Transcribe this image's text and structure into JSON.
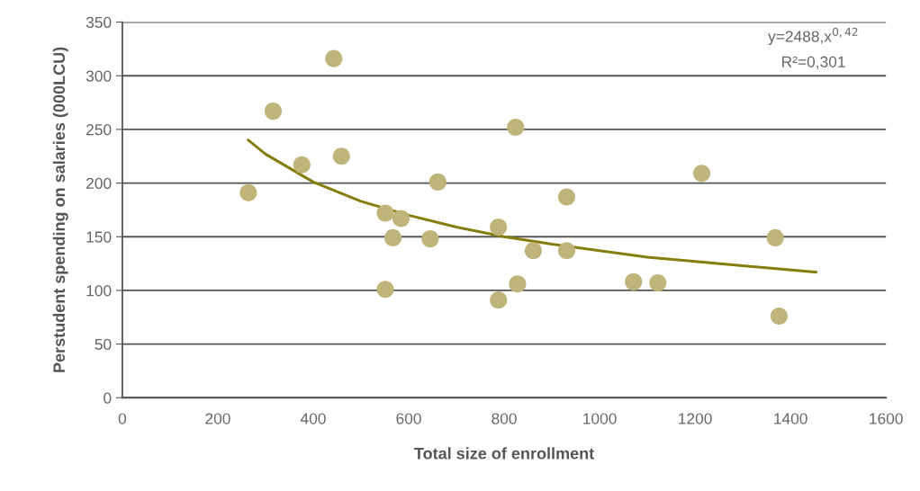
{
  "chart_data": {
    "type": "scatter",
    "xlabel": "Total size of enrollment",
    "ylabel": "Perstudent spending on salaries (000LCU)",
    "annotations": [
      "y=2488,x$^{0,42}$",
      "R²=0,301"
    ],
    "xlim": [
      0,
      1600
    ],
    "xticks": [
      0,
      200,
      400,
      600,
      800,
      1000,
      1200,
      1400,
      1600
    ],
    "ylim": [
      0,
      350
    ],
    "yticks": [
      0,
      50,
      100,
      150,
      200,
      250,
      300,
      350
    ],
    "grid": "y",
    "marker": "circle",
    "series": [
      {
        "color": "#bfb57a",
        "x": [
          264,
          316,
          376,
          443,
          459,
          551,
          551,
          567,
          584,
          645,
          661,
          788,
          788,
          824,
          828,
          861,
          931,
          931,
          1071,
          1122,
          1214,
          1368,
          1376
        ],
        "values": [
          191,
          267,
          217,
          316,
          225,
          172,
          101,
          149,
          167,
          148,
          201,
          159,
          91,
          252,
          106,
          137,
          187,
          137,
          108,
          107,
          209,
          149,
          76
        ]
      },
      {
        "type": "line",
        "color": "#857d0d",
        "line_style": "solid",
        "marker": "none",
        "x": [
          264,
          300,
          400,
          500,
          600,
          700,
          800,
          900,
          1000,
          1100,
          1200,
          1300,
          1453
        ],
        "values": [
          240,
          227,
          201,
          183,
          170,
          159,
          150,
          143,
          137,
          131,
          127,
          123,
          117
        ]
      }
    ]
  }
}
